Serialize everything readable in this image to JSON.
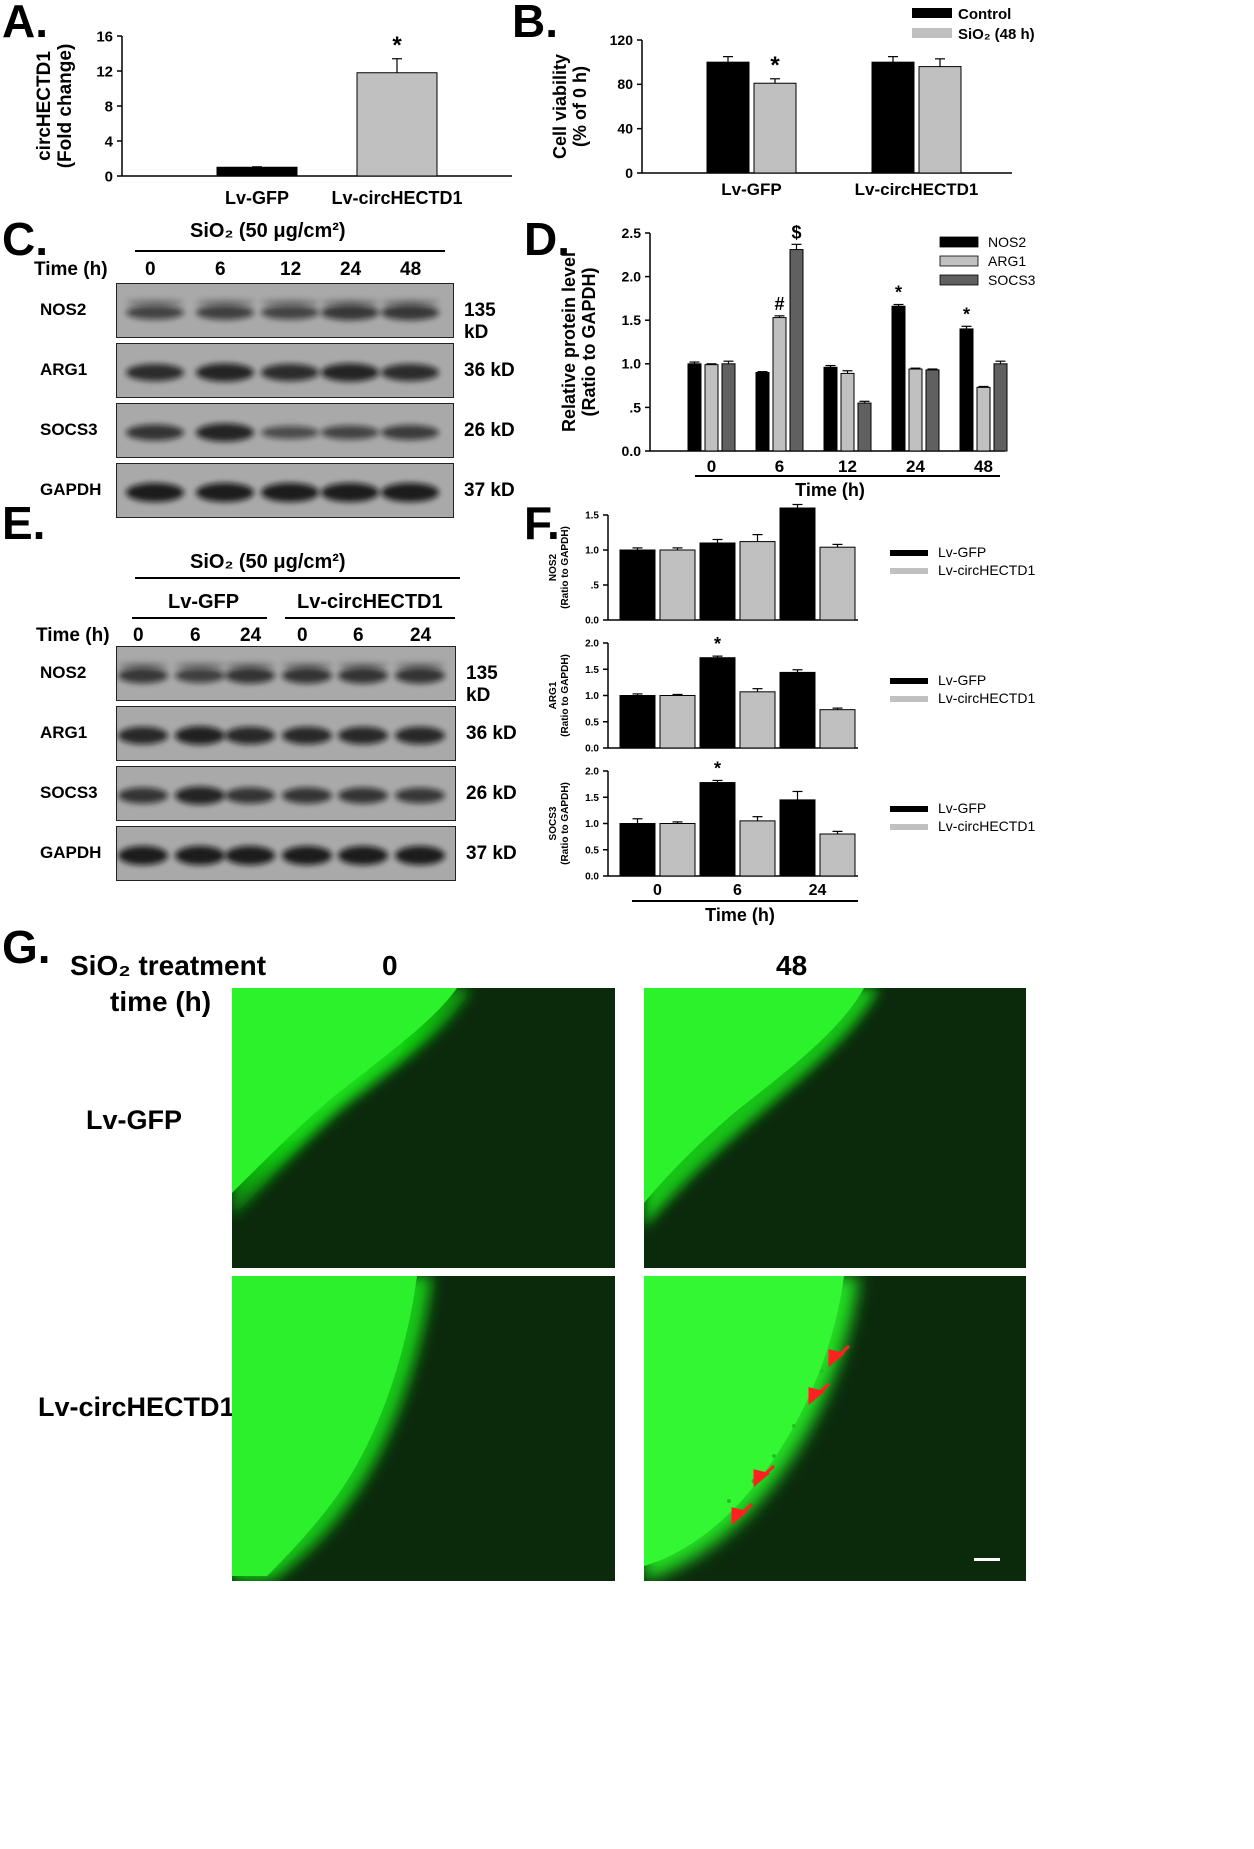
{
  "panels": {
    "A": "A.",
    "B": "B.",
    "C": "C.",
    "D": "D.",
    "E": "E.",
    "F": "F.",
    "G": "G."
  },
  "colors": {
    "black_bar": "#000000",
    "light_bar": "#c0c0c0",
    "dark_bar": "#606060",
    "gfp": "#00ee00",
    "arrow": "#ff2020"
  },
  "chart_data": [
    {
      "id": "A",
      "type": "bar",
      "ylabel": [
        "circHECTD1",
        "(Fold change)"
      ],
      "categories": [
        "Lv-GFP",
        "Lv-circHECTD1"
      ],
      "series": [
        {
          "values": [
            1.0,
            11.8
          ],
          "errors": [
            0.05,
            1.6
          ]
        }
      ],
      "colors": [
        "#000000",
        "#c0c0c0"
      ],
      "ylim": [
        0,
        16
      ],
      "yticks": [
        "0",
        "4",
        "8",
        "12",
        "16"
      ],
      "annotations": [
        {
          "category": 1,
          "text": "*"
        }
      ]
    },
    {
      "id": "B",
      "type": "bar",
      "ylabel": [
        "Cell viability",
        "(% of 0 h)"
      ],
      "categories": [
        "Lv-GFP",
        "Lv-circHECTD1"
      ],
      "series": [
        {
          "name": "Control",
          "values": [
            100,
            100
          ],
          "errors": [
            5,
            5
          ]
        },
        {
          "name": "SiO₂ (48 h)",
          "values": [
            81,
            96
          ],
          "errors": [
            4,
            7
          ]
        }
      ],
      "ylim": [
        0,
        120
      ],
      "yticks": [
        "0",
        "40",
        "80",
        "120"
      ],
      "annotations": [
        {
          "category": 0,
          "series": 1,
          "text": "*"
        }
      ]
    },
    {
      "id": "D",
      "type": "bar",
      "ylabel": [
        "Relative protein level",
        "(Ratio to GAPDH)"
      ],
      "xlabel": "Time (h)",
      "categories": [
        "0",
        "6",
        "12",
        "24",
        "48"
      ],
      "series": [
        {
          "name": "NOS2",
          "values": [
            1.0,
            0.9,
            0.96,
            1.66,
            1.4
          ],
          "errors": [
            0.02,
            0.01,
            0.02,
            0.02,
            0.03
          ]
        },
        {
          "name": "ARG1",
          "values": [
            0.99,
            1.53,
            0.89,
            0.94,
            0.73
          ],
          "errors": [
            0.01,
            0.02,
            0.03,
            0.01,
            0.01
          ]
        },
        {
          "name": "SOCS3",
          "values": [
            1.0,
            2.31,
            0.55,
            0.93,
            1.0
          ],
          "errors": [
            0.03,
            0.06,
            0.02,
            0.01,
            0.03
          ]
        }
      ],
      "ylim": [
        0,
        2.5
      ],
      "yticks": [
        "0.0",
        ".5",
        "1.0",
        "1.5",
        "2.0",
        "2.5"
      ],
      "annotations": [
        {
          "category": 1,
          "series": 1,
          "text": "#"
        },
        {
          "category": 1,
          "series": 2,
          "text": "$"
        },
        {
          "category": 3,
          "series": 0,
          "text": "*"
        },
        {
          "category": 4,
          "series": 0,
          "text": "*"
        }
      ]
    },
    {
      "id": "F1",
      "type": "bar",
      "ylabel": [
        "NOS2",
        "(Ratio to GAPDH)"
      ],
      "categories": [
        "0",
        "6",
        "24"
      ],
      "series": [
        {
          "name": "Lv-GFP",
          "values": [
            1.0,
            1.1,
            1.6
          ],
          "errors": [
            0.03,
            0.05,
            0.05
          ]
        },
        {
          "name": "Lv-circHECTD1",
          "values": [
            1.0,
            1.12,
            1.04
          ],
          "errors": [
            0.03,
            0.1,
            0.04
          ]
        }
      ],
      "ylim": [
        0,
        1.5
      ],
      "yticks": [
        "0.0",
        ".5",
        "1.0",
        "1.5"
      ],
      "annotations": [
        {
          "category": 2,
          "series": 0,
          "text": "*"
        }
      ]
    },
    {
      "id": "F2",
      "type": "bar",
      "ylabel": [
        "ARG1",
        "(Ratio to GAPDH)"
      ],
      "categories": [
        "0",
        "6",
        "24"
      ],
      "series": [
        {
          "name": "Lv-GFP",
          "values": [
            1.0,
            1.72,
            1.44
          ],
          "errors": [
            0.03,
            0.03,
            0.05
          ]
        },
        {
          "name": "Lv-circHECTD1",
          "values": [
            1.0,
            1.07,
            0.73
          ],
          "errors": [
            0.02,
            0.06,
            0.03
          ]
        }
      ],
      "ylim": [
        0,
        2.0
      ],
      "yticks": [
        "0.0",
        "0.5",
        "1.0",
        "1.5",
        "2.0"
      ],
      "annotations": [
        {
          "category": 1,
          "series": 0,
          "text": "*"
        }
      ]
    },
    {
      "id": "F3",
      "type": "bar",
      "ylabel": [
        "SOCS3",
        "(Ratio to GAPDH)"
      ],
      "xlabel": "Time (h)",
      "categories": [
        "0",
        "6",
        "24"
      ],
      "series": [
        {
          "name": "Lv-GFP",
          "values": [
            1.0,
            1.78,
            1.45
          ],
          "errors": [
            0.09,
            0.04,
            0.16
          ]
        },
        {
          "name": "Lv-circHECTD1",
          "values": [
            1.0,
            1.05,
            0.8
          ],
          "errors": [
            0.03,
            0.08,
            0.05
          ]
        }
      ],
      "ylim": [
        0,
        2.0
      ],
      "yticks": [
        "0.0",
        "0.5",
        "1.0",
        "1.5",
        "2.0"
      ],
      "annotations": [
        {
          "category": 1,
          "series": 0,
          "text": "*"
        }
      ]
    }
  ],
  "blot_C": {
    "treatment": "SiO₂ (50 μg/cm²)",
    "time_label": "Time (h)",
    "times": [
      "0",
      "6",
      "12",
      "24",
      "48"
    ],
    "rows": [
      {
        "label": "NOS2",
        "size": "135 kD"
      },
      {
        "label": "ARG1",
        "size": "36 kD"
      },
      {
        "label": "SOCS3",
        "size": "26 kD"
      },
      {
        "label": "GAPDH",
        "size": "37 kD"
      }
    ]
  },
  "blot_E": {
    "treatment": "SiO₂ (50 μg/cm²)",
    "groups": [
      "Lv-GFP",
      "Lv-circHECTD1"
    ],
    "time_label": "Time (h)",
    "times": [
      "0",
      "6",
      "24",
      "0",
      "6",
      "24"
    ],
    "rows": [
      {
        "label": "NOS2",
        "size": "135 kD"
      },
      {
        "label": "ARG1",
        "size": "36 kD"
      },
      {
        "label": "SOCS3",
        "size": "26 kD"
      },
      {
        "label": "GAPDH",
        "size": "37 kD"
      }
    ]
  },
  "panel_G": {
    "treatment_line1": "SiO₂ treatment",
    "treatment_line2": "time (h)",
    "col_0": "0",
    "col_48": "48",
    "row_gfp": "Lv-GFP",
    "row_circ": "Lv-circHECTD1"
  }
}
